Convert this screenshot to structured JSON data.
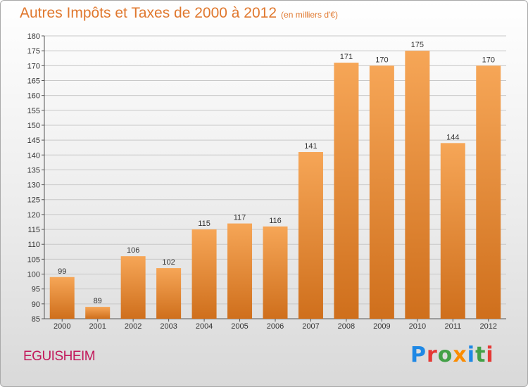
{
  "title": "Autres Impôts et Taxes de 2000 à 2012",
  "subtitle": "(en milliers d'€)",
  "commune": "EGUISHEIM",
  "logo": {
    "letters": [
      {
        "ch": "P",
        "color": "#1e88e5"
      },
      {
        "ch": "r",
        "color": "#e53935"
      },
      {
        "ch": "o",
        "color": "#43a047"
      },
      {
        "ch": "x",
        "color": "#fb8c00"
      },
      {
        "ch": "i",
        "color": "#1e88e5"
      },
      {
        "ch": "t",
        "color": "#43a047"
      },
      {
        "ch": "i",
        "color": "#e53935"
      }
    ]
  },
  "colors": {
    "bar_light": "#f6a657",
    "bar_dark": "#cf6f1c",
    "grid": "#c8c8c8",
    "title": "#e0782e"
  },
  "chart_data": {
    "type": "bar",
    "title": "Autres Impôts et Taxes de 2000 à 2012",
    "subtitle": "(en milliers d'€)",
    "xlabel": "",
    "ylabel": "",
    "categories": [
      "2000",
      "2001",
      "2002",
      "2003",
      "2004",
      "2005",
      "2006",
      "2007",
      "2008",
      "2009",
      "2010",
      "2011",
      "2012"
    ],
    "values": [
      99,
      89,
      106,
      102,
      115,
      117,
      116,
      141,
      171,
      170,
      175,
      144,
      170
    ],
    "value_labels": [
      "99",
      "89",
      "106",
      "102",
      "115",
      "117",
      "116",
      "141",
      "171",
      "170",
      "175",
      "144",
      "170"
    ],
    "ylim": [
      85,
      180
    ],
    "yticks": [
      85,
      90,
      95,
      100,
      105,
      110,
      115,
      120,
      125,
      130,
      135,
      140,
      145,
      150,
      155,
      160,
      165,
      170,
      175,
      180
    ],
    "grid": true,
    "legend": "none"
  }
}
